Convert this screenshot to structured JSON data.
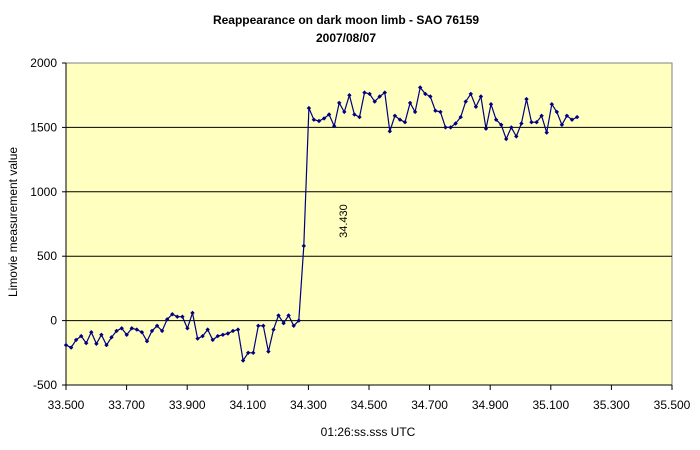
{
  "chart_data": {
    "type": "line",
    "title": "Reappearance on dark moon limb - SAO 76159",
    "subtitle": "2007/08/07",
    "xlabel": "01:26:ss.sss UTC",
    "ylabel": "Limovie measurement value",
    "xlim": [
      33.5,
      35.5
    ],
    "ylim": [
      -500,
      2000
    ],
    "x_ticks": [
      "33.500",
      "33.700",
      "33.900",
      "34.100",
      "34.300",
      "34.500",
      "34.700",
      "34.900",
      "35.100",
      "35.300",
      "35.500"
    ],
    "y_ticks": [
      "2000",
      "1500",
      "1000",
      "500",
      "0",
      "-500"
    ],
    "grid": "horizontal",
    "legend": "none",
    "colors": {
      "plot_background": "#FFFFC0",
      "series": "#000080",
      "grid": "#000000"
    },
    "annotation": {
      "text": "34.430",
      "x": 34.43,
      "y": 580
    },
    "series": [
      {
        "x_start": 33.5,
        "x_step": 0.0167,
        "values": [
          -190,
          -210,
          -150,
          -120,
          -175,
          -90,
          -180,
          -110,
          -190,
          -130,
          -80,
          -60,
          -110,
          -60,
          -70,
          -90,
          -160,
          -80,
          -40,
          -80,
          10,
          50,
          30,
          30,
          -60,
          60,
          -140,
          -120,
          -70,
          -150,
          -120,
          -110,
          -100,
          -80,
          -70,
          -310,
          -250,
          -250,
          -40,
          -40,
          -240,
          -70,
          40,
          -20,
          40,
          -40,
          0,
          580,
          1650,
          1560,
          1550,
          1570,
          1600,
          1510,
          1690,
          1620,
          1750,
          1600,
          1580,
          1770,
          1760,
          1700,
          1740,
          1770,
          1470,
          1590,
          1560,
          1540,
          1690,
          1620,
          1810,
          1760,
          1740,
          1630,
          1620,
          1500,
          1500,
          1530,
          1580,
          1700,
          1760,
          1660,
          1740,
          1490,
          1680,
          1560,
          1520,
          1410,
          1500,
          1430,
          1530,
          1720,
          1540,
          1540,
          1590,
          1460,
          1680,
          1620,
          1520,
          1590,
          1560,
          1580
        ]
      }
    ]
  }
}
